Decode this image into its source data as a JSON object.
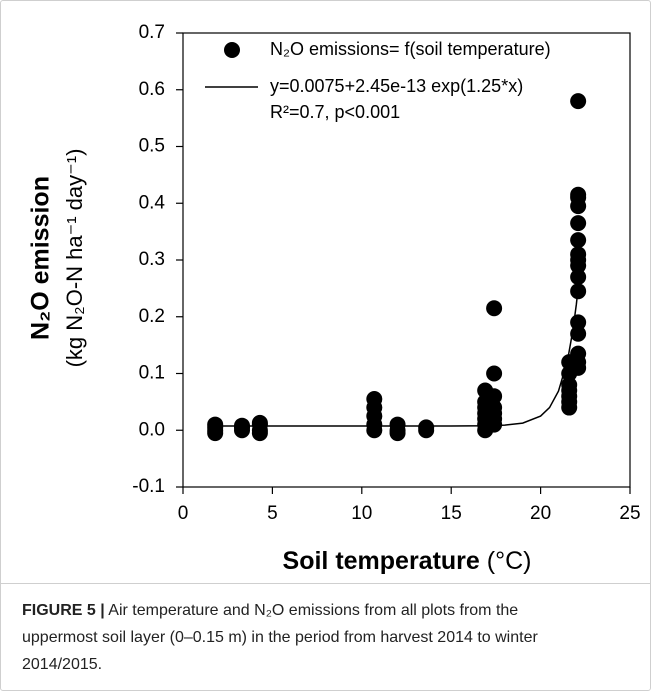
{
  "chart_data": {
    "type": "scatter",
    "ylabel": "N₂O emission",
    "ylabel_units": "(kg N₂O-N ha⁻¹ day⁻¹)",
    "xlabel": "Soil temperature",
    "xlabel_units": "(°C)",
    "xlim": [
      0,
      25
    ],
    "xticks": [
      0,
      5,
      10,
      15,
      20,
      25
    ],
    "ylim": [
      -0.1,
      0.7
    ],
    "yticks": [
      -0.1,
      {
        "value": 0,
        "label": "0.0"
      },
      0.1,
      0.2,
      0.3,
      0.4,
      0.5,
      0.6,
      0.7
    ],
    "annotation": "R²=0.7, p<0.001",
    "series": [
      {
        "name": "N₂O emissions= f(soil temperature)",
        "color": "#000000",
        "mode": "markers",
        "x": [
          1.8,
          1.8,
          1.8,
          1.8,
          3.3,
          3.3,
          3.3,
          4.3,
          4.3,
          4.3,
          4.3,
          10.7,
          10.7,
          10.7,
          10.7,
          10.7,
          12,
          12,
          12,
          13.6,
          13.6,
          16.9,
          16.9,
          16.9,
          16.9,
          16.9,
          16.9,
          16.9,
          17.4,
          17.4,
          17.4,
          17.4,
          17.4,
          17.4,
          17.4,
          21.6,
          21.6,
          21.6,
          21.6,
          21.6,
          21.6,
          21.6,
          22.1,
          22.1,
          22.1,
          22.1,
          22.1,
          22.1,
          22.1,
          22.1,
          22.1,
          22.1,
          22.1,
          22.1,
          22.1,
          22.1,
          22.1,
          22.1
        ],
        "values": [
          -0.005,
          0,
          0.005,
          0.01,
          0,
          0.005,
          0.008,
          -0.005,
          0,
          0.01,
          0.013,
          0,
          0.01,
          0.025,
          0.04,
          0.055,
          -0.005,
          0,
          0.01,
          0,
          0.005,
          0,
          0.01,
          0.02,
          0.03,
          0.04,
          0.05,
          0.07,
          0.01,
          0.02,
          0.03,
          0.04,
          0.06,
          0.1,
          0.215,
          0.04,
          0.05,
          0.06,
          0.07,
          0.08,
          0.1,
          0.12,
          0.11,
          0.12,
          0.135,
          0.17,
          0.19,
          0.245,
          0.27,
          0.29,
          0.3,
          0.31,
          0.335,
          0.365,
          0.395,
          0.41,
          0.415,
          0.58
        ]
      },
      {
        "name": "y=0.0075+2.45e-13 exp(1.25*x)",
        "color": "#000000",
        "mode": "line",
        "x": [
          1.8,
          15,
          17,
          18,
          19,
          20,
          20.5,
          21,
          21.5,
          21.8,
          22,
          22.1
        ],
        "values": [
          0.0075,
          0.0075,
          0.0079,
          0.009,
          0.0126,
          0.025,
          0.04,
          0.069,
          0.122,
          0.175,
          0.222,
          0.251
        ]
      }
    ]
  },
  "caption": {
    "label": "FIGURE 5 |",
    "text": "Air temperature and N₂O emissions from all plots from the uppermost soil layer (0–0.15 m) in the period from harvest 2014 to winter 2014/2015."
  }
}
